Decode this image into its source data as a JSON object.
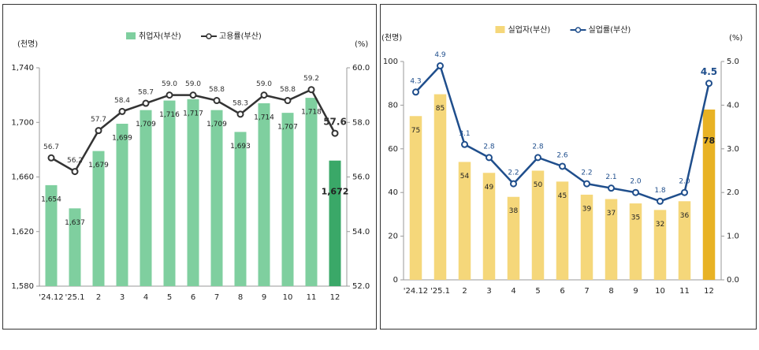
{
  "chart_data": [
    {
      "type": "bar-line",
      "y_unit": "(천명)",
      "y2_unit": "(%)",
      "categories": [
        "'24.12",
        "'25.1",
        "2",
        "3",
        "4",
        "5",
        "6",
        "7",
        "8",
        "9",
        "10",
        "11",
        "12"
      ],
      "ylim": [
        1580,
        1740
      ],
      "yticks": [
        {
          "value": 1580,
          "label": "1,580"
        },
        {
          "value": 1620,
          "label": "1,620"
        },
        {
          "value": 1660,
          "label": "1,660"
        },
        {
          "value": 1700,
          "label": "1,700"
        },
        {
          "value": 1740,
          "label": "1,740"
        }
      ],
      "y2lim": [
        52,
        60
      ],
      "y2ticks": [
        {
          "value": 52,
          "label": "52.0"
        },
        {
          "value": 54,
          "label": "54.0"
        },
        {
          "value": 56,
          "label": "56.0"
        },
        {
          "value": 58,
          "label": "58.0"
        },
        {
          "value": 60,
          "label": "60.0"
        }
      ],
      "series": [
        {
          "name": "취업자(부산)",
          "type": "bar",
          "color": "#7fcf9f",
          "colors": [
            "#7fcf9f",
            "#7fcf9f",
            "#7fcf9f",
            "#7fcf9f",
            "#7fcf9f",
            "#7fcf9f",
            "#7fcf9f",
            "#7fcf9f",
            "#7fcf9f",
            "#7fcf9f",
            "#7fcf9f",
            "#7fcf9f",
            "#3aa868"
          ],
          "values": [
            1654,
            1637,
            1679,
            1699,
            1709,
            1716,
            1717,
            1709,
            1693,
            1714,
            1707,
            1718,
            1672
          ],
          "value_labels": [
            "1,654",
            "1,637",
            "1,679",
            "1,699",
            "1,709",
            "1,716",
            "1,717",
            "1,709",
            "1,693",
            "1,714",
            "1,707",
            "1,718",
            "1,672"
          ]
        },
        {
          "name": "고용률(부산)",
          "type": "line",
          "axis": "y2",
          "color": "#333333",
          "values": [
            56.7,
            56.2,
            57.7,
            58.4,
            58.7,
            59.0,
            59.0,
            58.8,
            58.3,
            59.0,
            58.8,
            59.2,
            57.6
          ],
          "value_labels": [
            "56.7",
            "56.2",
            "57.7",
            "58.4",
            "58.7",
            "59.0",
            "59.0",
            "58.8",
            "58.3",
            "59.0",
            "58.8",
            "59.2",
            "57.6"
          ]
        }
      ]
    },
    {
      "type": "bar-line",
      "y_unit": "(천명)",
      "y2_unit": "(%)",
      "categories": [
        "'24.12",
        "'25.1",
        "2",
        "3",
        "4",
        "5",
        "6",
        "7",
        "8",
        "9",
        "10",
        "11",
        "12"
      ],
      "ylim": [
        0,
        100
      ],
      "yticks": [
        0,
        20,
        40,
        60,
        80,
        100
      ],
      "y2lim": [
        0,
        5
      ],
      "y2ticks": [
        {
          "value": 0,
          "label": "0.0"
        },
        {
          "value": 1,
          "label": "1.0"
        },
        {
          "value": 2,
          "label": "2.0"
        },
        {
          "value": 3,
          "label": "3.0"
        },
        {
          "value": 4,
          "label": "4.0"
        },
        {
          "value": 5,
          "label": "5.0"
        }
      ],
      "series": [
        {
          "name": "실업자(부산)",
          "type": "bar",
          "color": "#f5d77a",
          "colors": [
            "#f5d77a",
            "#f5d77a",
            "#f5d77a",
            "#f5d77a",
            "#f5d77a",
            "#f5d77a",
            "#f5d77a",
            "#f5d77a",
            "#f5d77a",
            "#f5d77a",
            "#f5d77a",
            "#f5d77a",
            "#e8b224"
          ],
          "values": [
            75,
            85,
            54,
            49,
            38,
            50,
            45,
            39,
            37,
            35,
            32,
            36,
            78
          ]
        },
        {
          "name": "실업률(부산)",
          "type": "line",
          "axis": "y2",
          "color": "#1f4e8c",
          "values": [
            4.3,
            4.9,
            3.1,
            2.8,
            2.2,
            2.8,
            2.6,
            2.2,
            2.1,
            2.0,
            1.8,
            2.0,
            4.5
          ],
          "value_labels": [
            "4.3",
            "4.9",
            "3.1",
            "2.8",
            "2.2",
            "2.8",
            "2.6",
            "2.2",
            "2.1",
            "2.0",
            "1.8",
            "2.0",
            "4.5"
          ]
        }
      ]
    }
  ]
}
